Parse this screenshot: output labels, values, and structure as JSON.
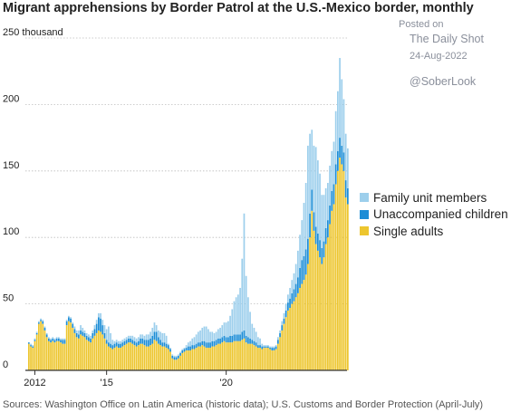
{
  "title": "Migrant apprehensions by Border Patrol at the U.S.-Mexico border, monthly",
  "watermark": {
    "posted_on": "Posted on",
    "publisher": "The Daily Shot",
    "date": "24-Aug-2022",
    "handle": "@SoberLook"
  },
  "source": "Sources: Washington Office on Latin America (historic data); U.S. Customs and Border Protection (April-July)",
  "colors": {
    "family": "#9dcfec",
    "unaccompanied": "#1c8dd6",
    "single": "#edc62f",
    "single_edge": "#f6e08a",
    "grid": "#bdbdbd",
    "axis": "#333333"
  },
  "chart_data": {
    "type": "bar",
    "stacked": true,
    "title": "Migrant apprehensions by Border Patrol at the U.S.-Mexico border, monthly",
    "ylabel": "thousand",
    "ylim": [
      0,
      250
    ],
    "yticks": [
      {
        "value": 0,
        "label": "0"
      },
      {
        "value": 50,
        "label": "50"
      },
      {
        "value": 100,
        "label": "100"
      },
      {
        "value": 150,
        "label": "150"
      },
      {
        "value": 200,
        "label": "200"
      },
      {
        "value": 250,
        "label": "250 thousand"
      }
    ],
    "xticks": [
      {
        "date": "2012-01",
        "label": "2012"
      },
      {
        "date": "2015-01",
        "label": "'15"
      },
      {
        "date": "2020-01",
        "label": "'20"
      }
    ],
    "grid": true,
    "legend_position": "right",
    "start_month": "2011-10",
    "series": [
      {
        "name": "Family unit members",
        "key": "family",
        "values": [
          0,
          1,
          1,
          1,
          1,
          1,
          1,
          1,
          1,
          1,
          1,
          1,
          1,
          1,
          1,
          1,
          1,
          1,
          1,
          1,
          1,
          1,
          1,
          2,
          2,
          3,
          4,
          3,
          2,
          2,
          2,
          2,
          2,
          3,
          3,
          3,
          4,
          4,
          6,
          8,
          12,
          8,
          4,
          2,
          2,
          2,
          2,
          2,
          2,
          2,
          2,
          2,
          3,
          3,
          3,
          3,
          3,
          3,
          3,
          4,
          4,
          5,
          6,
          7,
          5,
          5,
          6,
          7,
          7,
          6,
          1,
          1,
          1,
          1,
          1,
          1,
          1,
          1,
          1,
          2,
          3,
          4,
          5,
          6,
          7,
          8,
          9,
          10,
          11,
          12,
          10,
          8,
          7,
          6,
          6,
          7,
          8,
          9,
          10,
          11,
          12,
          15,
          20,
          25,
          28,
          30,
          35,
          55,
          88,
          45,
          30,
          20,
          12,
          10,
          8,
          6,
          5,
          2,
          1,
          1,
          1,
          1,
          1,
          1,
          1,
          2,
          2,
          3,
          4,
          5,
          6,
          8,
          10,
          12,
          15,
          20,
          25,
          30,
          40,
          50,
          70,
          60,
          45,
          50,
          60,
          55,
          50,
          40,
          35,
          30,
          28,
          30,
          30,
          32,
          40,
          45,
          60,
          50,
          40,
          35,
          30
        ]
      },
      {
        "name": "Unaccompanied children",
        "key": "unaccompanied",
        "values": [
          1,
          1,
          1,
          1,
          1,
          1,
          1,
          2,
          2,
          2,
          2,
          2,
          2,
          2,
          2,
          2,
          2,
          3,
          3,
          3,
          3,
          3,
          3,
          3,
          3,
          3,
          3,
          3,
          3,
          3,
          3,
          3,
          4,
          5,
          7,
          10,
          10,
          7,
          4,
          3,
          3,
          3,
          3,
          3,
          3,
          3,
          3,
          3,
          3,
          3,
          3,
          3,
          3,
          3,
          3,
          3,
          4,
          4,
          4,
          5,
          5,
          5,
          6,
          6,
          7,
          5,
          4,
          3,
          3,
          3,
          3,
          2,
          2,
          2,
          2,
          2,
          2,
          2,
          2,
          2,
          3,
          3,
          3,
          3,
          3,
          3,
          3,
          3,
          4,
          4,
          4,
          4,
          4,
          4,
          4,
          4,
          4,
          4,
          4,
          4,
          4,
          5,
          5,
          5,
          5,
          5,
          5,
          6,
          6,
          5,
          5,
          4,
          3,
          3,
          3,
          2,
          2,
          2,
          1,
          1,
          1,
          1,
          2,
          2,
          2,
          3,
          3,
          4,
          4,
          5,
          6,
          7,
          8,
          9,
          10,
          12,
          15,
          18,
          18,
          19,
          19,
          18,
          16,
          14,
          13,
          13,
          13,
          12,
          12,
          12,
          13,
          14,
          15,
          15,
          15,
          15,
          15,
          14,
          14,
          13,
          12
        ]
      },
      {
        "name": "Single adults",
        "key": "single",
        "values": [
          20,
          18,
          17,
          22,
          27,
          35,
          37,
          35,
          30,
          25,
          22,
          21,
          22,
          21,
          22,
          22,
          21,
          20,
          20,
          34,
          37,
          36,
          32,
          28,
          25,
          24,
          27,
          26,
          25,
          23,
          22,
          21,
          24,
          26,
          28,
          30,
          29,
          27,
          24,
          20,
          18,
          17,
          16,
          17,
          18,
          17,
          17,
          18,
          19,
          20,
          21,
          21,
          20,
          19,
          18,
          19,
          20,
          20,
          19,
          18,
          18,
          19,
          20,
          23,
          22,
          20,
          19,
          18,
          18,
          17,
          16,
          14,
          9,
          8,
          8,
          9,
          11,
          13,
          14,
          15,
          15,
          15,
          16,
          16,
          17,
          18,
          18,
          19,
          18,
          17,
          17,
          17,
          18,
          18,
          19,
          20,
          20,
          21,
          22,
          21,
          21,
          21,
          21,
          22,
          22,
          22,
          22,
          23,
          24,
          21,
          20,
          20,
          20,
          19,
          18,
          17,
          17,
          16,
          17,
          17,
          17,
          16,
          15,
          15,
          16,
          20,
          25,
          30,
          35,
          40,
          45,
          47,
          50,
          52,
          55,
          58,
          62,
          65,
          68,
          72,
          80,
          100,
          120,
          105,
          95,
          90,
          85,
          80,
          85,
          95,
          100,
          110,
          120,
          125,
          140,
          150,
          160,
          155,
          150,
          130,
          125
        ]
      }
    ]
  }
}
